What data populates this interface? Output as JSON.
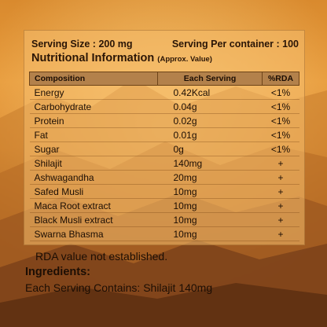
{
  "serving": {
    "size": "Serving Size : 200 mg",
    "per_container": "Serving Per container : 100"
  },
  "nutrition": {
    "title": "Nutritional Information",
    "subtitle": "(Approx. Value)"
  },
  "table": {
    "headers": [
      "Composition",
      "Each Serving",
      "%RDA"
    ],
    "rows": [
      [
        "Energy",
        "0.42Kcal",
        "<1%"
      ],
      [
        "Carbohydrate",
        "0.04g",
        "<1%"
      ],
      [
        "Protein",
        "0.02g",
        "<1%"
      ],
      [
        "Fat",
        "0.01g",
        "<1%"
      ],
      [
        "Sugar",
        "0g",
        "<1%"
      ],
      [
        "Shilajit",
        "140mg",
        "+"
      ],
      [
        "Ashwagandha",
        "20mg",
        "+"
      ],
      [
        "Safed Musli",
        "10mg",
        "+"
      ],
      [
        "Maca Root extract",
        "10mg",
        "+"
      ],
      [
        "Black Musli extract",
        "10mg",
        "+"
      ],
      [
        "Swarna Bhasma",
        "10mg",
        "+"
      ]
    ]
  },
  "footnote": "RDA value not established.",
  "ingredients": {
    "title": "Ingredients:",
    "text": "Each Serving Contains: Shilajit 140mg"
  }
}
